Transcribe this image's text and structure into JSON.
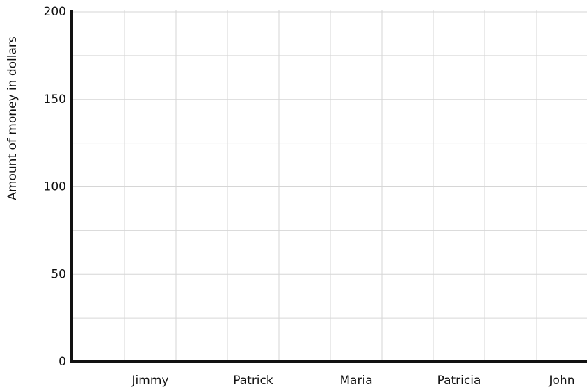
{
  "chart_data": {
    "type": "bar",
    "y_label": "Amount of money in dollars",
    "categories": [
      null,
      "Jimmy",
      null,
      "Patrick",
      null,
      "Maria",
      null,
      "Patricia",
      null,
      "John"
    ],
    "ylim": [
      0,
      200
    ],
    "yticks": [
      0,
      50,
      100,
      150,
      200
    ],
    "y_minor_ticks": [
      25,
      75,
      125,
      175
    ],
    "grid": true,
    "color": "#4472c4"
  }
}
